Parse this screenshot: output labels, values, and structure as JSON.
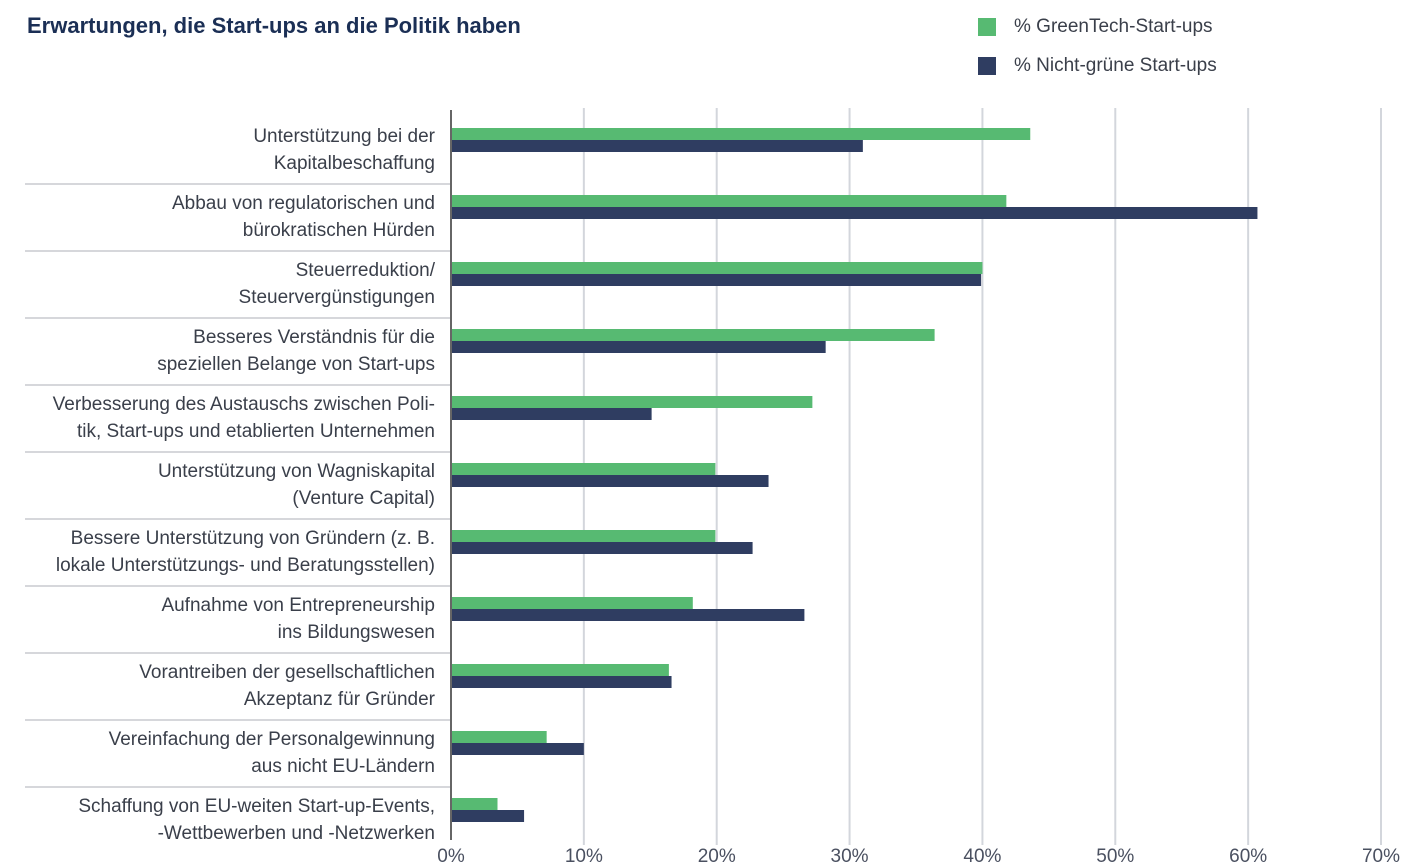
{
  "chart_data": {
    "type": "hbar",
    "title": "Erwartungen, die Start-ups an die Politik haben",
    "categories": [
      [
        "Unterstützung bei der",
        "Kapitalbeschaffung"
      ],
      [
        "Abbau von regulatorischen und",
        "bürokratischen Hürden"
      ],
      [
        "Steuerreduktion/",
        "Steuervergünstigungen"
      ],
      [
        "Besseres Verständnis für die",
        "speziellen Belange von Start-ups"
      ],
      [
        "Verbesserung des Austauschs zwischen Poli-",
        "tik, Start-ups und etablierten Unternehmen"
      ],
      [
        "Unterstützung von Wagniskapital",
        "(Venture Capital)"
      ],
      [
        "Bessere Unterstützung von Gründern (z. B.",
        "lokale Unterstützungs- und Beratungsstellen)"
      ],
      [
        "Aufnahme von Entrepreneurship",
        "ins Bildungswesen"
      ],
      [
        "Vorantreiben der gesellschaftlichen",
        "Akzeptanz für Gründer"
      ],
      [
        "Vereinfachung der Personalgewinnung",
        "aus nicht EU-Ländern"
      ],
      [
        "Schaffung von EU-weiten Start-up-Events,",
        "-Wettbewerben und -Netzwerken"
      ]
    ],
    "series": [
      {
        "name": "% GreenTech-Start-ups",
        "color": "#57ba72",
        "values": [
          43.6,
          41.8,
          40.0,
          36.4,
          27.2,
          19.9,
          19.9,
          18.2,
          16.4,
          7.2,
          3.5
        ]
      },
      {
        "name": "% Nicht-grüne Start-ups",
        "color": "#2f3d61",
        "values": [
          31.0,
          60.7,
          39.9,
          28.2,
          15.1,
          23.9,
          22.7,
          26.6,
          16.6,
          10.0,
          5.5
        ]
      }
    ],
    "xlim": [
      0,
      70
    ],
    "xticks": [
      {
        "value": 0,
        "label": "0%"
      },
      {
        "value": 10,
        "label": "10%"
      },
      {
        "value": 20,
        "label": "20%"
      },
      {
        "value": 30,
        "label": "30%"
      },
      {
        "value": 40,
        "label": "40%"
      },
      {
        "value": 50,
        "label": "50%"
      },
      {
        "value": 60,
        "label": "60%"
      },
      {
        "value": 70,
        "label": "70%"
      }
    ],
    "grid": true,
    "legend": "top-right"
  }
}
